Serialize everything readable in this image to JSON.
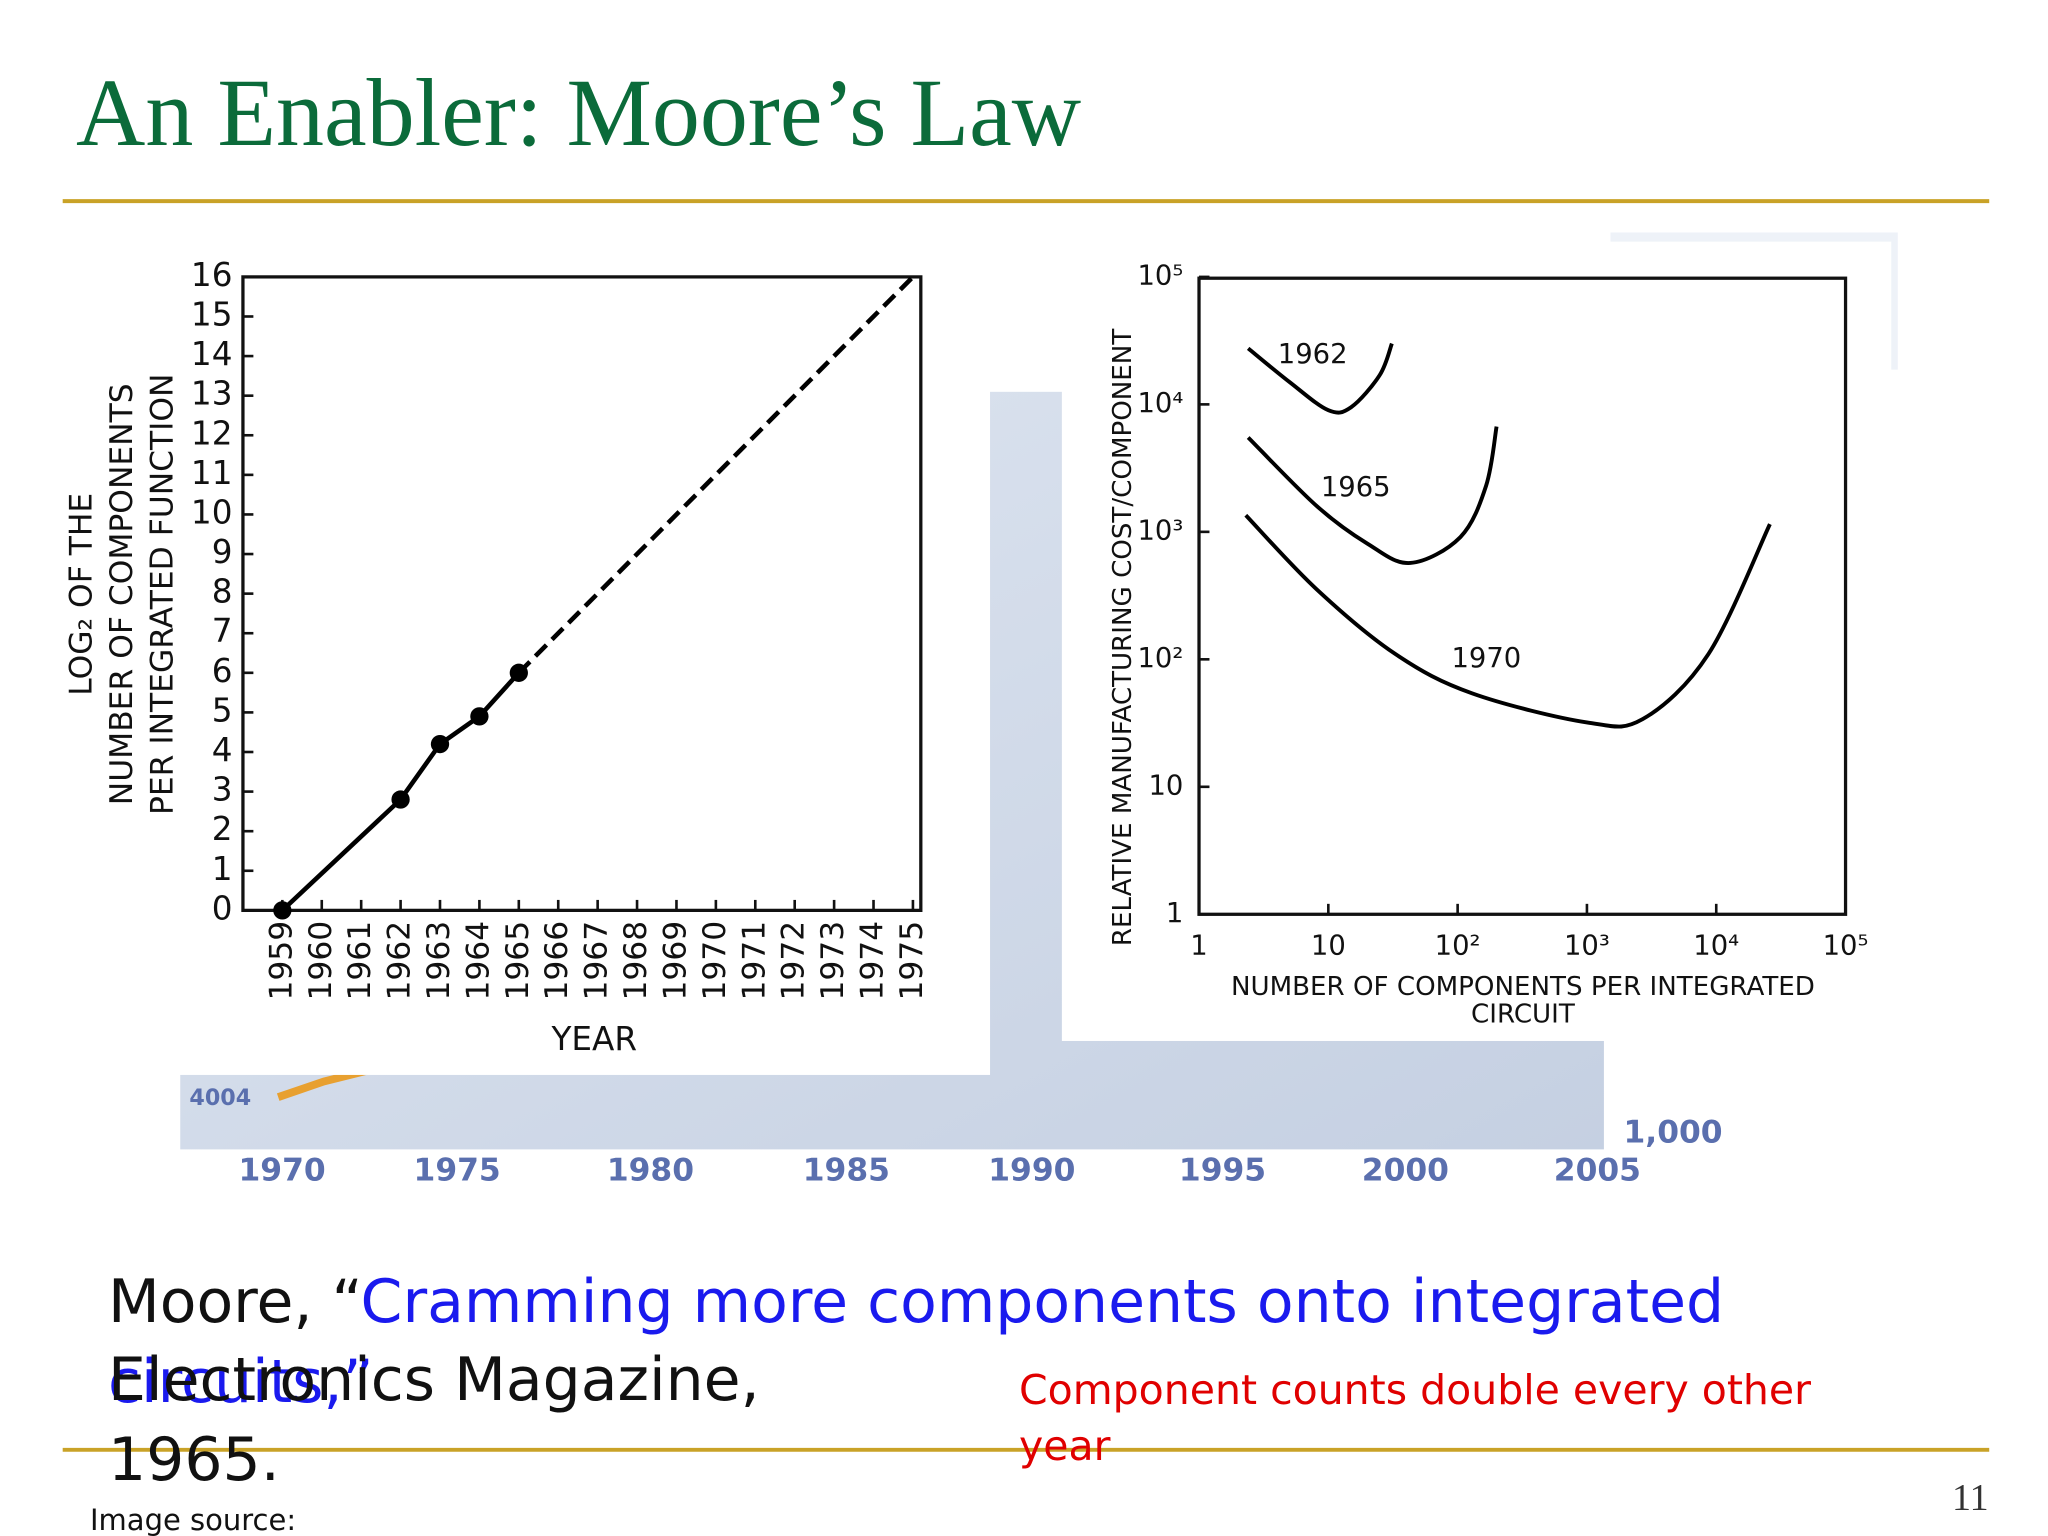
{
  "title": "An Enabler: Moore’s Law",
  "citation": {
    "prefix": "Moore, “",
    "link": "Cramming more components onto integrated circuits,”",
    "rest": "Electronics Magazine, 1965."
  },
  "note": "Component counts double every other year",
  "image_source": "Image source: Intel",
  "page_number": "11",
  "background_chart": {
    "x_labels": [
      "1970",
      "1975",
      "1980",
      "1985",
      "1990",
      "1995",
      "2000",
      "2005"
    ],
    "y_label": "1,000",
    "annotation": "4004"
  },
  "charts": [
    {
      "type": "line",
      "ylabel": [
        "LOG₂ OF THE",
        "NUMBER OF COMPONENTS",
        "PER INTEGRATED FUNCTION"
      ],
      "xlabel": "YEAR",
      "xlim": [
        1958,
        1975.2
      ],
      "xticks": [
        1959,
        1960,
        1961,
        1962,
        1963,
        1964,
        1965,
        1966,
        1967,
        1968,
        1969,
        1970,
        1971,
        1972,
        1973,
        1974,
        1975
      ],
      "ylim": [
        0,
        16
      ],
      "yticks": [
        0,
        1,
        2,
        3,
        4,
        5,
        6,
        7,
        8,
        9,
        10,
        11,
        12,
        13,
        14,
        15,
        16
      ],
      "series": [
        {
          "color": "#000000",
          "style": "solid",
          "markers": true,
          "x": [
            1959,
            1962,
            1963,
            1964,
            1965
          ],
          "values": [
            0,
            2.8,
            4.2,
            4.9,
            6
          ]
        },
        {
          "color": "#000000",
          "style": "dashed",
          "markers": false,
          "x": [
            1965,
            1975
          ],
          "values": [
            6,
            16
          ]
        }
      ]
    },
    {
      "type": "line",
      "log_x": true,
      "log_y": true,
      "ylabel": "RELATIVE MANUFACTURING COST/COMPONENT",
      "xlabel": [
        "NUMBER OF COMPONENTS PER INTEGRATED",
        "CIRCUIT"
      ],
      "xlim": [
        1,
        100000
      ],
      "xticks": [
        1,
        10,
        {
          "value": 100,
          "label": "10²"
        },
        {
          "value": 1000,
          "label": "10³"
        },
        {
          "value": 10000,
          "label": "10⁴"
        },
        {
          "value": 100000,
          "label": "10⁵"
        }
      ],
      "ylim": [
        1,
        100000
      ],
      "yticks": [
        1,
        10,
        {
          "value": 100,
          "label": "10²"
        },
        {
          "value": 1000,
          "label": "10³"
        },
        {
          "value": 10000,
          "label": "10⁴"
        },
        {
          "value": 100000,
          "label": "10⁵"
        }
      ],
      "series": [
        {
          "name": "1962",
          "color": "#000000",
          "x": [
            2.4,
            5,
            10,
            15,
            25,
            31
          ],
          "values": [
            27500,
            15000,
            9000,
            9500,
            17000,
            30000
          ]
        },
        {
          "name": "1965",
          "color": "#000000",
          "x": [
            2.4,
            8.1,
            20,
            43,
            105,
            166,
            200
          ],
          "values": [
            5500,
            1600,
            810,
            570,
            910,
            2300,
            6700
          ]
        },
        {
          "name": "1970",
          "color": "#000000",
          "x": [
            2.3,
            8.1,
            33,
            130,
            1000,
            2700,
            8700,
            26000
          ],
          "values": [
            1350,
            355,
            110,
            54,
            32,
            34,
            110,
            1150
          ]
        }
      ]
    }
  ]
}
